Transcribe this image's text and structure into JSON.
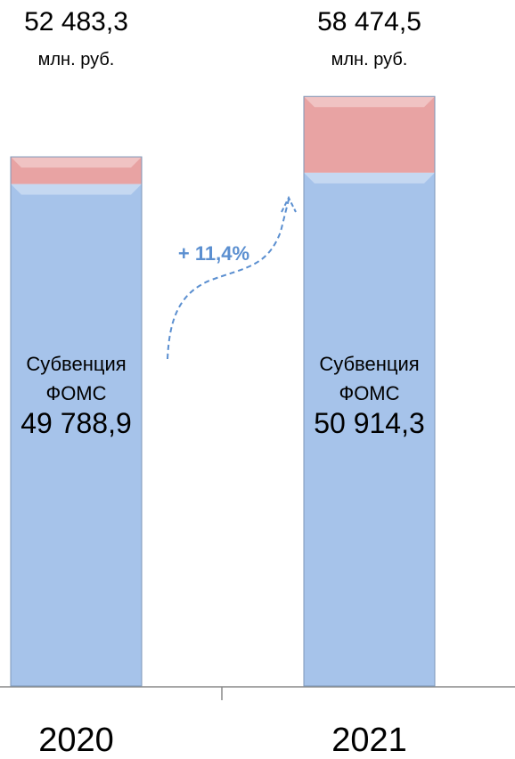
{
  "chart_data": {
    "type": "stacked_bar",
    "categories": [
      "2020",
      "2021"
    ],
    "series": [
      {
        "name": "Субвенция ФОМС",
        "color": "#a6c3ea",
        "values": [
          49788.9,
          50914.3
        ],
        "value_labels": [
          "49 788,9",
          "50 914,3"
        ]
      },
      {
        "color": "#e8a3a3",
        "values": [
          2694.4,
          7560.2
        ]
      }
    ],
    "totals": [
      52483.3,
      58474.5
    ],
    "total_labels": [
      "52 483,3",
      "58 474,5"
    ],
    "unit": "млн. руб.",
    "annotation": "+ 11,4%",
    "ylim": [
      0,
      60000
    ]
  }
}
